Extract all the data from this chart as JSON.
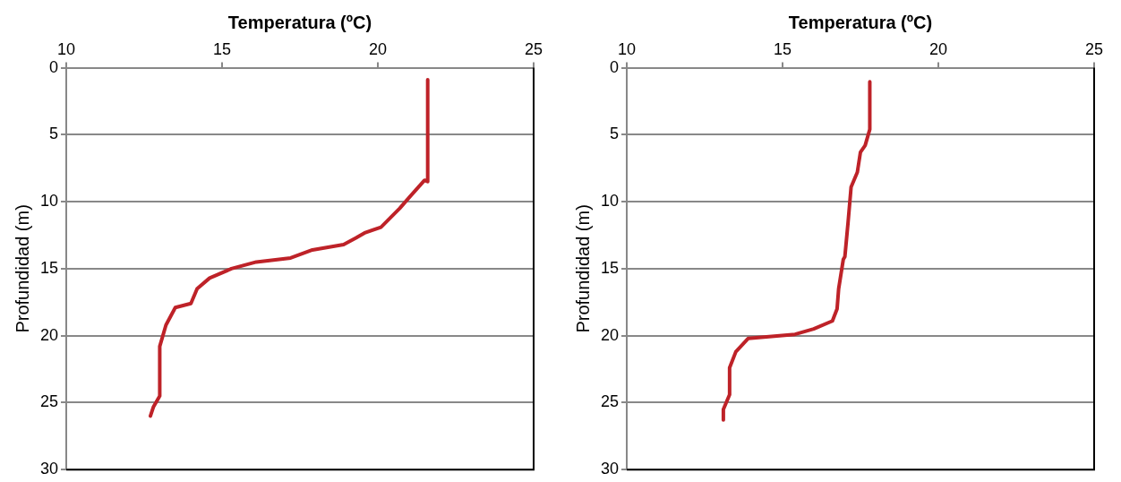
{
  "chart_data": [
    {
      "type": "line",
      "xlabel": "Temperatura (ºC)",
      "ylabel": "Profundidad (m)",
      "xlim": [
        10,
        25
      ],
      "xticks": [
        10,
        15,
        20,
        25
      ],
      "ylim": [
        30,
        0
      ],
      "yticks": [
        0,
        5,
        10,
        15,
        20,
        25,
        30
      ],
      "grid": "y",
      "legend": false,
      "marker": "none",
      "line_style": "solid",
      "series": [
        {
          "color": "#be2228",
          "x": [
            21.6,
            21.6,
            21.5,
            21.0,
            20.7,
            20.4,
            20.1,
            19.6,
            19.3,
            18.9,
            17.9,
            17.2,
            16.1,
            15.3,
            14.6,
            14.2,
            14.0,
            13.5,
            13.2,
            13.0,
            13.0,
            12.8,
            12.7
          ],
          "values": [
            0.9,
            8.5,
            8.4,
            9.7,
            10.5,
            11.2,
            11.9,
            12.3,
            12.7,
            13.2,
            13.6,
            14.2,
            14.5,
            15.0,
            15.7,
            16.5,
            17.6,
            17.9,
            19.2,
            20.8,
            24.5,
            25.3,
            26.0
          ]
        }
      ]
    },
    {
      "type": "line",
      "xlabel": "Temperatura (ºC)",
      "ylabel": "Profundidad (m)",
      "xlim": [
        10,
        25
      ],
      "xticks": [
        10,
        15,
        20,
        25
      ],
      "ylim": [
        30,
        0
      ],
      "yticks": [
        0,
        5,
        10,
        15,
        20,
        25,
        30
      ],
      "grid": "y",
      "legend": false,
      "marker": "none",
      "line_style": "solid",
      "series": [
        {
          "color": "#be2228",
          "x": [
            17.8,
            17.8,
            17.65,
            17.5,
            17.4,
            17.2,
            17.1,
            17.0,
            16.95,
            16.8,
            16.75,
            16.6,
            16.0,
            15.4,
            13.9,
            13.5,
            13.3,
            13.3,
            13.1,
            13.1
          ],
          "values": [
            1.05,
            4.6,
            5.8,
            6.3,
            7.8,
            8.9,
            11.6,
            14.1,
            14.3,
            16.5,
            18.0,
            18.9,
            19.5,
            19.9,
            20.2,
            21.2,
            22.4,
            24.4,
            25.5,
            26.3
          ]
        }
      ]
    }
  ]
}
